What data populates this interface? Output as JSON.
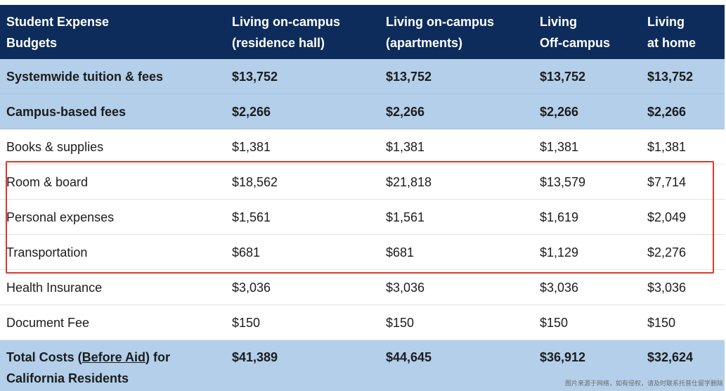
{
  "table": {
    "headers": [
      [
        "Student Expense",
        "Budgets"
      ],
      [
        "Living on-campus",
        "(residence hall)"
      ],
      [
        "Living on-campus",
        "(apartments)"
      ],
      [
        "Living",
        "Off-campus"
      ],
      [
        "Living",
        "at home"
      ]
    ],
    "rows": [
      {
        "label": "Systemwide tuition & fees",
        "style": "blue",
        "values": [
          "$13,752",
          "$13,752",
          "$13,752",
          "$13,752"
        ]
      },
      {
        "label": "Campus-based fees",
        "style": "blue",
        "values": [
          "$2,266",
          "$2,266",
          "$2,266",
          "$2,266"
        ]
      },
      {
        "label": "Books & supplies",
        "style": "white",
        "values": [
          "$1,381",
          "$1,381",
          "$1,381",
          "$1,381"
        ]
      },
      {
        "label": "Room & board",
        "style": "white",
        "values": [
          "$18,562",
          "$21,818",
          "$13,579",
          "$7,714"
        ]
      },
      {
        "label": "Personal expenses",
        "style": "white",
        "values": [
          "$1,561",
          "$1,561",
          "$1,619",
          "$2,049"
        ]
      },
      {
        "label": "Transportation",
        "style": "white",
        "values": [
          "$681",
          "$681",
          "$1,129",
          "$2,276"
        ]
      },
      {
        "label": "Health Insurance",
        "style": "white",
        "values": [
          "$3,036",
          "$3,036",
          "$3,036",
          "$3,036"
        ]
      },
      {
        "label": "Document Fee",
        "style": "white",
        "values": [
          "$150",
          "$150",
          "$150",
          "$150"
        ]
      }
    ],
    "total": {
      "label_prefix": "Total Costs (",
      "label_link": "Before Aid",
      "label_suffix": ") for",
      "label_line2": "California Residents",
      "values": [
        "$41,389",
        "$44,645",
        "$36,912",
        "$32,624"
      ]
    }
  },
  "highlight": {
    "color": "#e0382b"
  },
  "colors": {
    "header_bg": "#0d2c5b",
    "blue_row_bg": "#b3cfea",
    "white_row_bg": "#ffffff"
  },
  "watermark": "图片来源于网络，如有侵权，请及时联系托普仕留学删除"
}
